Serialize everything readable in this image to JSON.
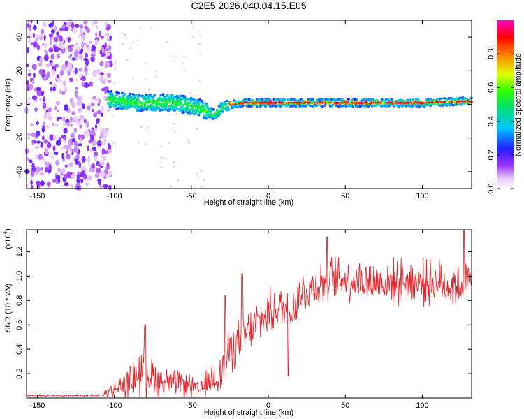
{
  "title": "C2E5.2026.040.04.15.E05",
  "chart_data": [
    {
      "type": "heatmap",
      "name": "spectrogram",
      "xlabel": "Height of straight line (km)",
      "ylabel": "Frequency (Hz)",
      "xlim": [
        -157,
        132
      ],
      "ylim": [
        -50,
        50
      ],
      "xticks": [
        "-150",
        "-100",
        "-50",
        "0",
        "50",
        "100"
      ],
      "xtick_values": [
        -150,
        -100,
        -50,
        0,
        50,
        100
      ],
      "yticks": [
        "-40",
        "-20",
        "0",
        "20",
        "40"
      ],
      "ytick_values": [
        -40,
        -20,
        0,
        20,
        40
      ],
      "colorbar": {
        "label": "Normalized spectral amplitude",
        "range": [
          0,
          1
        ],
        "ticks": [
          "0.0",
          "0.2",
          "0.4",
          "0.6",
          "0.8"
        ],
        "tick_values": [
          0.0,
          0.2,
          0.4,
          0.6,
          0.8
        ],
        "colormap": "rainbow-white-to-magenta"
      },
      "noise_region_x": [
        -157,
        -102
      ],
      "ridge": {
        "x": [
          -104,
          -95,
          -85,
          -75,
          -65,
          -55,
          -50,
          -45,
          -40,
          -35,
          -30,
          -25,
          -15,
          0,
          25,
          50,
          75,
          100,
          132
        ],
        "frequency": [
          3,
          2,
          1,
          1,
          1,
          0,
          -1,
          -2,
          -4,
          -6,
          -2,
          0,
          1,
          1,
          1,
          1,
          1,
          1,
          2
        ]
      }
    },
    {
      "type": "line",
      "name": "snr",
      "xlabel": "Height of straight line (km)",
      "ylabel": "SNR (10 * v/v)",
      "multiplier_label": "(x10",
      "multiplier_exp": "4",
      "xlim": [
        -157,
        132
      ],
      "ylim": [
        0,
        1.38
      ],
      "xticks": [
        "-150",
        "-100",
        "-50",
        "0",
        "50",
        "100"
      ],
      "xtick_values": [
        -150,
        -100,
        -50,
        0,
        50,
        100
      ],
      "yticks": [
        "0.2",
        "0.4",
        "0.6",
        "0.8",
        "1.0",
        "1.2"
      ],
      "ytick_values": [
        0.2,
        0.4,
        0.6,
        0.8,
        1.0,
        1.2
      ],
      "color": "#e8242a",
      "envelope": {
        "x": [
          -157,
          -110,
          -100,
          -90,
          -80,
          -75,
          -70,
          -60,
          -50,
          -45,
          -40,
          -35,
          -30,
          -27,
          -20,
          -10,
          0,
          10,
          15,
          20,
          30,
          40,
          50,
          60,
          70,
          80,
          90,
          100,
          110,
          120,
          132
        ],
        "y": [
          0.02,
          0.02,
          0.07,
          0.14,
          0.24,
          0.18,
          0.14,
          0.12,
          0.1,
          0.06,
          0.12,
          0.18,
          0.2,
          0.35,
          0.45,
          0.58,
          0.7,
          0.74,
          0.72,
          0.85,
          0.92,
          0.98,
          0.98,
          0.96,
          0.95,
          0.95,
          0.96,
          0.95,
          0.95,
          0.92,
          0.95
        ]
      },
      "peaks": [
        {
          "x": -80,
          "y": 0.6
        },
        {
          "x": -28,
          "y": 0.84
        },
        {
          "x": -17,
          "y": 1.02
        },
        {
          "x": 13,
          "y": 0.18
        },
        {
          "x": 38,
          "y": 1.32
        },
        {
          "x": 127,
          "y": 1.42
        }
      ]
    }
  ]
}
